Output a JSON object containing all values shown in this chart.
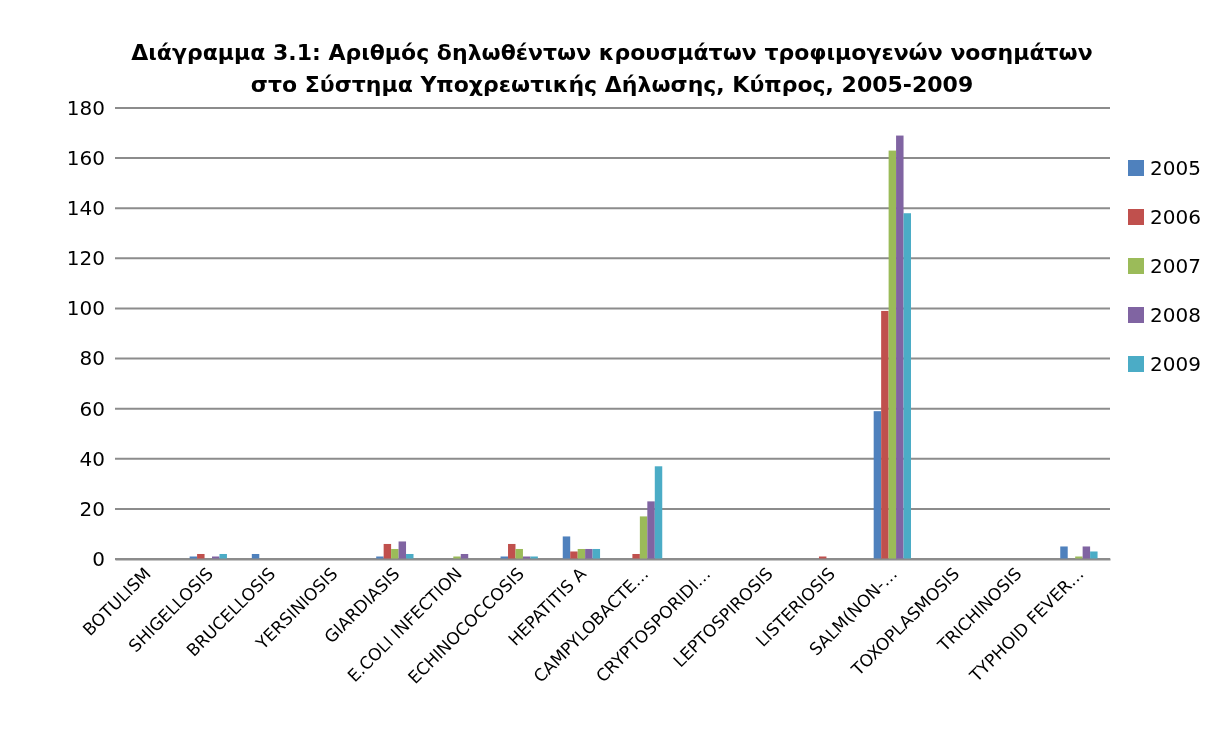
{
  "chart_data": {
    "type": "bar",
    "title": "Διάγραμμα 3.1: Αριθμός δηλωθέντων κρουσμάτων τροφιμογενών νοσημάτων στο Σύστημα Υποχρεωτικής Δήλωσης, Κύπρος, 2005-2009",
    "categories": [
      "BOTULISM",
      "SHIGELLOSIS",
      "BRUCELLOSIS",
      "YERSINIOSIS",
      "GIARDIASIS",
      "E.COLI INFECTION",
      "ECHINOCOCCOSIS",
      "HEPATITIS A",
      "CAMPYLOBACTE…",
      "CRYPTOSPORIDI…",
      "LEPTOSPIROSIS",
      "LISTERIOSIS",
      "SALM(NON-…",
      "TOXOPLASMOSIS",
      "TRICHINOSIS",
      "TYPHOID FEVER…"
    ],
    "series": [
      {
        "name": "2005",
        "color": "#4f81bd",
        "values": [
          0,
          1,
          2,
          0,
          1,
          0,
          1,
          9,
          0,
          0,
          0,
          0,
          59,
          0,
          0,
          5
        ]
      },
      {
        "name": "2006",
        "color": "#c0504d",
        "values": [
          0,
          2,
          0,
          0,
          6,
          0,
          6,
          3,
          2,
          0,
          0,
          1,
          99,
          0,
          0,
          0
        ]
      },
      {
        "name": "2007",
        "color": "#9bbb59",
        "values": [
          0,
          0,
          0,
          0,
          4,
          1,
          4,
          4,
          17,
          0,
          0,
          0,
          163,
          0,
          0,
          1
        ]
      },
      {
        "name": "2008",
        "color": "#8064a2",
        "values": [
          0,
          1,
          0,
          0,
          7,
          2,
          1,
          4,
          23,
          0,
          0,
          0,
          169,
          0,
          0,
          5
        ]
      },
      {
        "name": "2009",
        "color": "#4bacc6",
        "values": [
          0,
          2,
          0,
          0,
          2,
          0,
          1,
          4,
          37,
          0,
          0,
          0,
          138,
          0,
          0,
          3
        ]
      }
    ],
    "ylim": [
      0,
      180
    ],
    "yticks": [
      0,
      20,
      40,
      60,
      80,
      100,
      120,
      140,
      160,
      180
    ],
    "grid": "y",
    "legend": "right"
  }
}
